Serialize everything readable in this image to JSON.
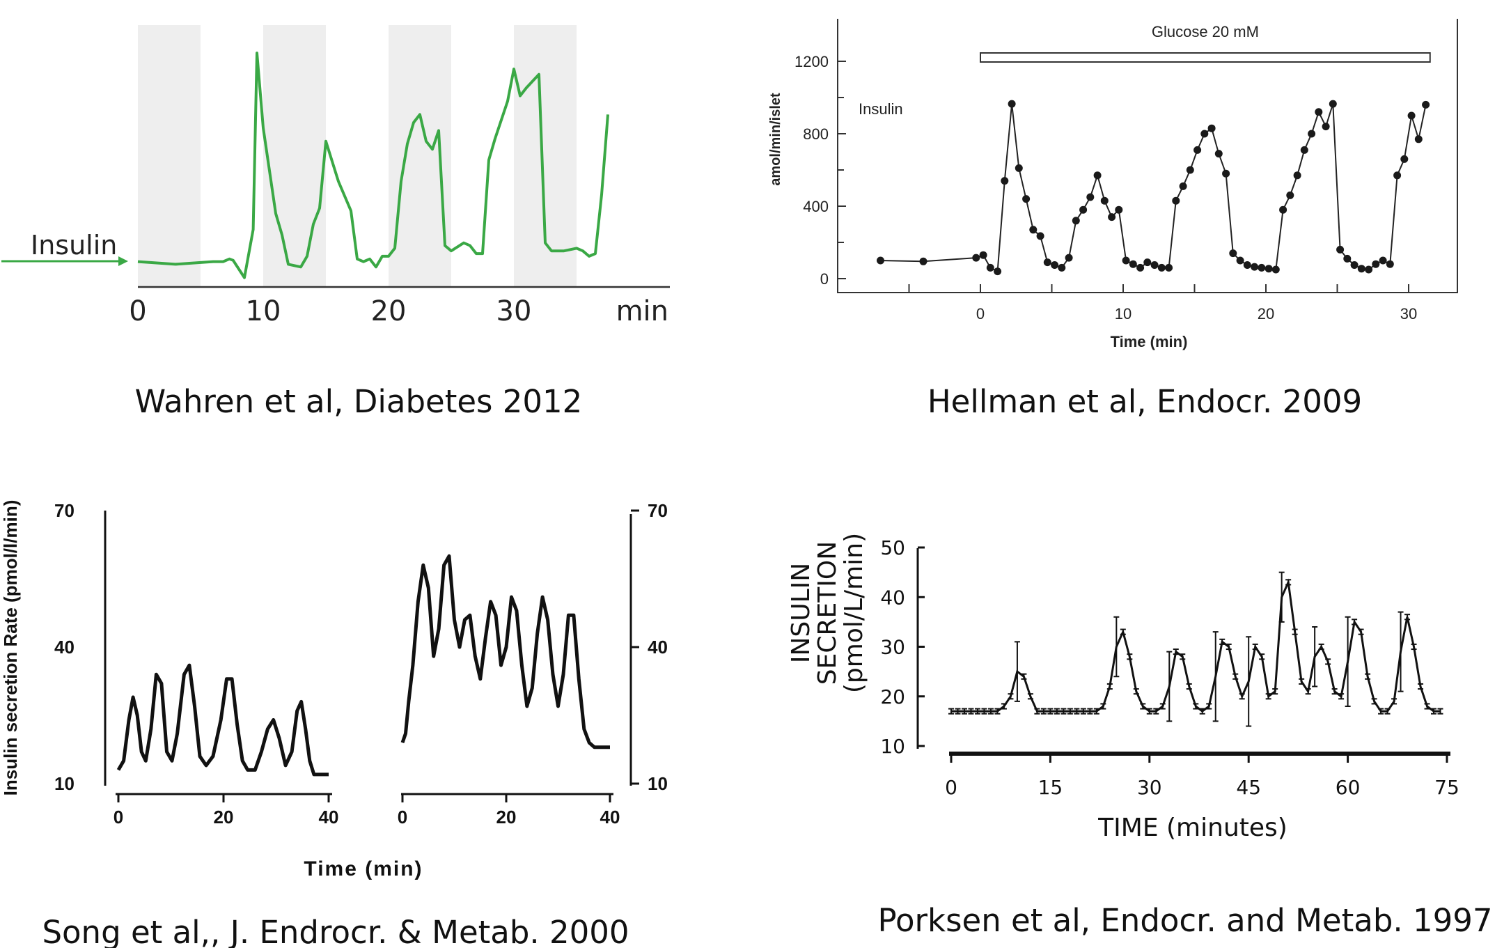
{
  "figure": {
    "captions": {
      "wahren": "Wahren et al, Diabetes 2012",
      "hellman": "Hellman et al, Endocr. 2009",
      "song": "Song et al,, J. Endrocr. & Metab. 2000",
      "porksen": "Porksen et al, Endocr. and Metab. 1997"
    }
  },
  "chart_data": [
    {
      "id": "wahren",
      "type": "line",
      "title": "",
      "series_label": "Insulin",
      "xlabel": "",
      "x_unit_label": "min",
      "ylabel": "",
      "xlim": [
        0,
        43
      ],
      "ylim": [
        0,
        100
      ],
      "x_ticks": [
        0,
        10,
        20,
        30
      ],
      "shaded_intervals": [
        [
          0,
          5
        ],
        [
          10,
          15
        ],
        [
          20,
          25
        ],
        [
          30,
          35
        ]
      ],
      "line_color": "#3aa845",
      "shade_color": "#eeeeee",
      "series": [
        {
          "x": [
            0,
            3,
            6,
            6.8,
            7.3,
            7.6,
            8.5,
            9.2,
            9.5,
            10,
            11,
            11.5,
            12,
            13,
            13.5,
            14,
            14.5,
            15,
            16,
            17,
            17.5,
            18,
            18.5,
            19,
            19.5,
            20,
            20.5,
            21,
            21.5,
            22,
            22.5,
            23,
            23.5,
            24,
            24.5,
            25,
            26,
            26.5,
            27,
            27.5,
            28,
            28.5,
            29,
            29.5,
            30,
            30.5,
            31,
            32,
            32.5,
            33,
            34,
            35,
            35.5,
            36,
            36.5,
            37,
            37.5
          ],
          "y": [
            10,
            9,
            10,
            10,
            11,
            10.5,
            4,
            22,
            88,
            60,
            28,
            20,
            9,
            8,
            12,
            24,
            30,
            55,
            40,
            29,
            11,
            10,
            11,
            8,
            12,
            12,
            15,
            40,
            54,
            62,
            65,
            55,
            52,
            59,
            16,
            14,
            17,
            16,
            13,
            13,
            48,
            56,
            63,
            70,
            82,
            72,
            75,
            80,
            17,
            14,
            14,
            15,
            14,
            12,
            13,
            35,
            65
          ]
        }
      ]
    },
    {
      "id": "hellman",
      "type": "line",
      "title": "",
      "annotation": "Glucose 20 mM",
      "annotation_range": [
        0,
        31.5
      ],
      "series_label": "Insulin",
      "xlabel": "Time (min)",
      "ylabel": "amol/min/islet",
      "xlim": [
        -10,
        33
      ],
      "ylim": [
        -80,
        1450
      ],
      "x_ticks": [
        0,
        10,
        20,
        30
      ],
      "y_ticks": [
        0,
        400,
        800,
        1200
      ],
      "series": [
        {
          "x": [
            -7,
            -4,
            -0.3,
            0.2,
            0.7,
            1.2,
            1.7,
            2.2,
            2.7,
            3.2,
            3.7,
            4.2,
            4.7,
            5.2,
            5.7,
            6.2,
            6.7,
            7.2,
            7.7,
            8.2,
            8.7,
            9.2,
            9.7,
            10.2,
            10.7,
            11.2,
            11.7,
            12.2,
            12.7,
            13.2,
            13.7,
            14.2,
            14.7,
            15.2,
            15.7,
            16.2,
            16.7,
            17.2,
            17.7,
            18.2,
            18.7,
            19.2,
            19.7,
            20.2,
            20.7,
            21.2,
            21.7,
            22.2,
            22.7,
            23.2,
            23.7,
            24.2,
            24.7,
            25.2,
            25.7,
            26.2,
            26.7,
            27.2,
            27.7,
            28.2,
            28.7,
            29.2,
            29.7,
            30.2,
            30.7,
            31.2
          ],
          "y": [
            100,
            95,
            115,
            130,
            60,
            40,
            540,
            965,
            610,
            440,
            270,
            235,
            90,
            75,
            60,
            115,
            320,
            380,
            450,
            570,
            430,
            340,
            380,
            100,
            80,
            60,
            90,
            75,
            60,
            60,
            430,
            510,
            600,
            710,
            800,
            830,
            690,
            580,
            140,
            100,
            75,
            65,
            60,
            55,
            50,
            380,
            460,
            570,
            710,
            800,
            920,
            840,
            965,
            160,
            110,
            75,
            55,
            50,
            80,
            100,
            80,
            570,
            660,
            900,
            770,
            960
          ]
        }
      ]
    },
    {
      "id": "song-left",
      "type": "line",
      "title": "",
      "ylabel": "Insulin secretion Rate (pmol/l/min)",
      "xlabel": "Time (min)",
      "xlim": [
        0,
        40
      ],
      "ylim": [
        10,
        70
      ],
      "x_ticks": [
        0,
        20,
        40
      ],
      "y_ticks": [
        10,
        40,
        70
      ],
      "series": [
        {
          "x": [
            0,
            1,
            2,
            2.8,
            3.6,
            4.4,
            5.2,
            6.2,
            7.2,
            8.2,
            9.2,
            10.2,
            11.2,
            12.5,
            13.5,
            14.5,
            15.5,
            16.7,
            18,
            19.5,
            20.6,
            21.6,
            22.6,
            23.6,
            24.6,
            26,
            27.2,
            28.4,
            29.5,
            30.6,
            31.8,
            33,
            34,
            34.8,
            35.6,
            36.4,
            37.2,
            38,
            40
          ],
          "y": [
            13,
            15,
            24,
            29,
            25,
            17,
            15,
            22,
            34,
            32,
            17,
            15,
            21,
            34,
            36,
            27,
            16,
            14,
            16,
            24,
            33,
            33,
            23,
            15,
            13,
            13,
            17,
            22,
            24,
            20,
            14,
            17,
            26,
            28,
            22,
            15,
            12,
            12,
            12
          ]
        }
      ]
    },
    {
      "id": "song-right",
      "type": "line",
      "title": "",
      "xlabel": "",
      "ylabel": "",
      "xlim": [
        0,
        40
      ],
      "ylim": [
        10,
        70
      ],
      "x_ticks": [
        0,
        20,
        40
      ],
      "y_ticks": [
        10,
        40,
        70
      ],
      "series": [
        {
          "x": [
            0,
            0.6,
            1.2,
            2,
            3,
            4,
            5,
            6,
            7,
            8,
            9,
            10,
            11,
            12,
            13,
            14,
            15,
            16,
            17,
            18,
            19,
            20,
            21,
            22,
            23,
            24,
            25,
            26,
            27,
            28,
            29,
            30,
            31,
            32,
            33,
            34,
            35,
            36,
            37,
            38,
            39,
            40
          ],
          "y": [
            19,
            21,
            28,
            36,
            50,
            58,
            53,
            38,
            44,
            58,
            60,
            46,
            40,
            46,
            47,
            38,
            33,
            42,
            50,
            47,
            36,
            40,
            51,
            48,
            36,
            27,
            31,
            43,
            51,
            46,
            34,
            27,
            34,
            47,
            47,
            33,
            22,
            19,
            18,
            18,
            18,
            18
          ]
        }
      ]
    },
    {
      "id": "porksen",
      "type": "line",
      "title": "",
      "ylabel": "INSULIN SECRETION (pmol/L/min)",
      "ylabel_lines": [
        "INSULIN",
        "SECRETION",
        "(pmol/L/min)"
      ],
      "xlabel": "TIME (minutes)",
      "xlim": [
        0,
        75
      ],
      "ylim": [
        10,
        50
      ],
      "x_ticks": [
        0,
        15,
        30,
        45,
        60,
        75
      ],
      "y_ticks": [
        10,
        20,
        30,
        40,
        50
      ],
      "series": [
        {
          "x": [
            0,
            1,
            2,
            3,
            4,
            5,
            6,
            7,
            8,
            9,
            10,
            11,
            12,
            13,
            14,
            15,
            16,
            17,
            18,
            19,
            20,
            21,
            22,
            23,
            24,
            25,
            26,
            27,
            28,
            29,
            30,
            31,
            32,
            33,
            34,
            35,
            36,
            37,
            38,
            39,
            40,
            41,
            42,
            43,
            44,
            45,
            46,
            47,
            48,
            49,
            50,
            51,
            52,
            53,
            54,
            55,
            56,
            57,
            58,
            59,
            60,
            61,
            62,
            63,
            64,
            65,
            66,
            67,
            68,
            69,
            70,
            71,
            72,
            73,
            74
          ],
          "y": [
            17,
            17,
            17,
            17,
            17,
            17,
            17,
            17,
            18,
            20,
            25,
            24,
            20,
            17,
            17,
            17,
            17,
            17,
            17,
            17,
            17,
            17,
            17,
            18,
            22,
            30,
            33,
            28,
            21,
            18,
            17,
            17,
            18,
            22,
            29,
            28,
            22,
            18,
            17,
            18,
            24,
            31,
            30,
            24,
            20,
            23,
            30,
            28,
            20,
            21,
            40,
            43,
            33,
            23,
            21,
            28,
            30,
            27,
            21,
            20,
            27,
            35,
            33,
            24,
            19,
            17,
            17,
            19,
            29,
            36,
            30,
            22,
            18,
            17,
            17
          ],
          "error_bars_at": [
            10,
            25,
            33,
            40,
            45,
            50,
            55,
            60,
            68
          ],
          "error_bar_plus": [
            6,
            6,
            7,
            9,
            9,
            5,
            6,
            9,
            8
          ]
        }
      ]
    }
  ]
}
